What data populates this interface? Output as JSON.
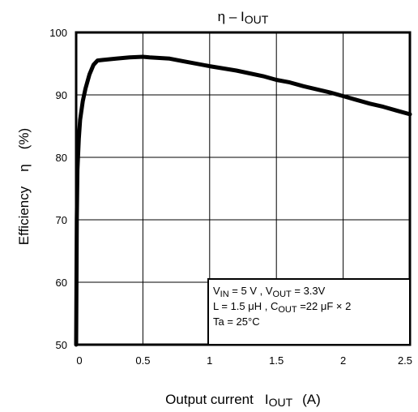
{
  "chart_data": {
    "type": "line",
    "title": {
      "main": "η – I",
      "sub": "OUT"
    },
    "xlabel": {
      "pre": "Output current",
      "var": "I",
      "sub": "OUT",
      "unit": "(A)"
    },
    "ylabel": {
      "pre": "Efficiency",
      "var": "η",
      "unit": "(%)"
    },
    "xlim": [
      0,
      2.5
    ],
    "ylim": [
      50,
      100
    ],
    "xticks": [
      0,
      0.5,
      1,
      1.5,
      2,
      2.5
    ],
    "xtick_labels": [
      "0",
      "0.5",
      "1",
      "1.5",
      "2",
      "2.5"
    ],
    "yticks": [
      50,
      60,
      70,
      80,
      90,
      100
    ],
    "ytick_labels": [
      "50",
      "60",
      "70",
      "80",
      "90",
      "100"
    ],
    "grid": true,
    "series": [
      {
        "color": "#000000",
        "x": [
          0.0,
          0.005,
          0.01,
          0.02,
          0.03,
          0.05,
          0.07,
          0.1,
          0.13,
          0.16,
          0.2,
          0.3,
          0.4,
          0.5,
          0.55,
          0.7,
          0.8,
          1.0,
          1.2,
          1.4,
          1.5,
          1.6,
          1.7,
          1.8,
          1.9,
          2.0,
          2.1,
          2.2,
          2.3,
          2.4,
          2.5
        ],
        "y": [
          50,
          70,
          78,
          83,
          86,
          89,
          91,
          93.3,
          94.8,
          95.5,
          95.6,
          95.8,
          96.0,
          96.1,
          96.0,
          95.8,
          95.4,
          94.6,
          93.9,
          93.0,
          92.4,
          92.0,
          91.4,
          90.9,
          90.4,
          89.8,
          89.2,
          88.6,
          88.1,
          87.5,
          86.9
        ]
      }
    ],
    "annotation": {
      "line1": [
        {
          "t": "V"
        },
        {
          "t": "IN",
          "sub": true
        },
        {
          "t": " = 5 V , V"
        },
        {
          "t": "OUT",
          "sub": true
        },
        {
          "t": " = 3.3V"
        }
      ],
      "line2": [
        {
          "t": "L = 1.5 μH , C"
        },
        {
          "t": "OUT",
          "sub": true
        },
        {
          "t": " =22 μF × 2"
        }
      ],
      "line3": [
        {
          "t": "Ta = 25°C"
        }
      ]
    }
  }
}
